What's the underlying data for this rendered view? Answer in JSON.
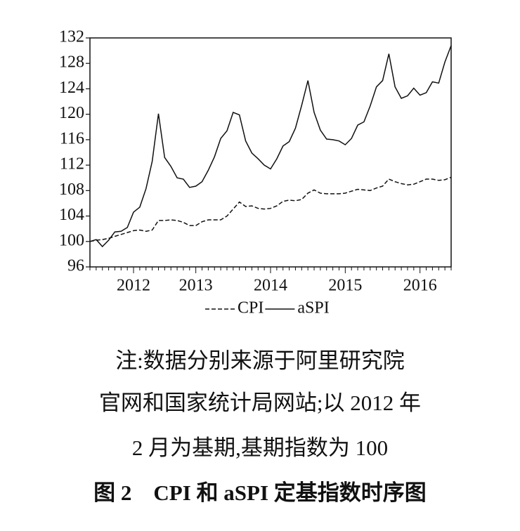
{
  "chart_data": {
    "type": "line",
    "categories": [
      null,
      null,
      null,
      null,
      null,
      null,
      null,
      "2012",
      null,
      null,
      null,
      null,
      null,
      null,
      null,
      null,
      null,
      "2013",
      null,
      null,
      null,
      null,
      null,
      null,
      null,
      null,
      null,
      null,
      null,
      "2014",
      null,
      null,
      null,
      null,
      null,
      null,
      null,
      null,
      null,
      null,
      null,
      "2015",
      null,
      null,
      null,
      null,
      null,
      null,
      null,
      null,
      null,
      null,
      null,
      "2016",
      null,
      null,
      null,
      null,
      null
    ],
    "series": [
      {
        "name": "CPI",
        "color": "#111111",
        "dash": true,
        "values": [
          100,
          100.2,
          100.3,
          100.5,
          100.8,
          101.1,
          101.4,
          101.7,
          101.8,
          101.6,
          101.8,
          103.3,
          103.3,
          103.4,
          103.3,
          103.0,
          102.5,
          102.5,
          103.1,
          103.4,
          103.4,
          103.4,
          104.0,
          105.1,
          106.2,
          105.5,
          105.6,
          105.2,
          105.1,
          105.2,
          105.6,
          106.3,
          106.5,
          106.4,
          106.6,
          107.6,
          108.1,
          107.6,
          107.5,
          107.5,
          107.5,
          107.6,
          107.9,
          108.2,
          108.1,
          108.0,
          108.4,
          108.7,
          109.8,
          109.4,
          109.1,
          108.9,
          109.0,
          109.4,
          109.8,
          109.8,
          109.6,
          109.7,
          110.1
        ]
      },
      {
        "name": "aSPI",
        "color": "#111111",
        "dash": false,
        "values": [
          100,
          100.3,
          99.2,
          100.2,
          101.5,
          101.6,
          102.2,
          104.6,
          105.4,
          108.3,
          112.6,
          120.1,
          113.2,
          111.8,
          110,
          109.8,
          108.5,
          108.7,
          109.4,
          111.2,
          113.3,
          116.2,
          117.4,
          120.3,
          119.9,
          115.8,
          113.9,
          113,
          112,
          111.4,
          113,
          115,
          115.7,
          117.8,
          121.4,
          125.3,
          120.3,
          117.5,
          116.1,
          116,
          115.8,
          115.2,
          116.2,
          118.3,
          118.8,
          121.3,
          124.3,
          125.3,
          129.5,
          124.3,
          122.5,
          122.9,
          124.1,
          123,
          123.4,
          125.1,
          124.9,
          128.2,
          130.8
        ]
      }
    ],
    "ylim": [
      96,
      132
    ],
    "yticks": [
      96,
      100,
      104,
      108,
      112,
      116,
      120,
      124,
      128,
      132
    ]
  },
  "note_lines": [
    "注:数据分别来源于阿里研究院",
    "官网和国家统计局网站;以 2012 年",
    "2 月为基期,基期指数为 100"
  ],
  "caption": "图 2　CPI 和 aSPI 定基指数时序图"
}
